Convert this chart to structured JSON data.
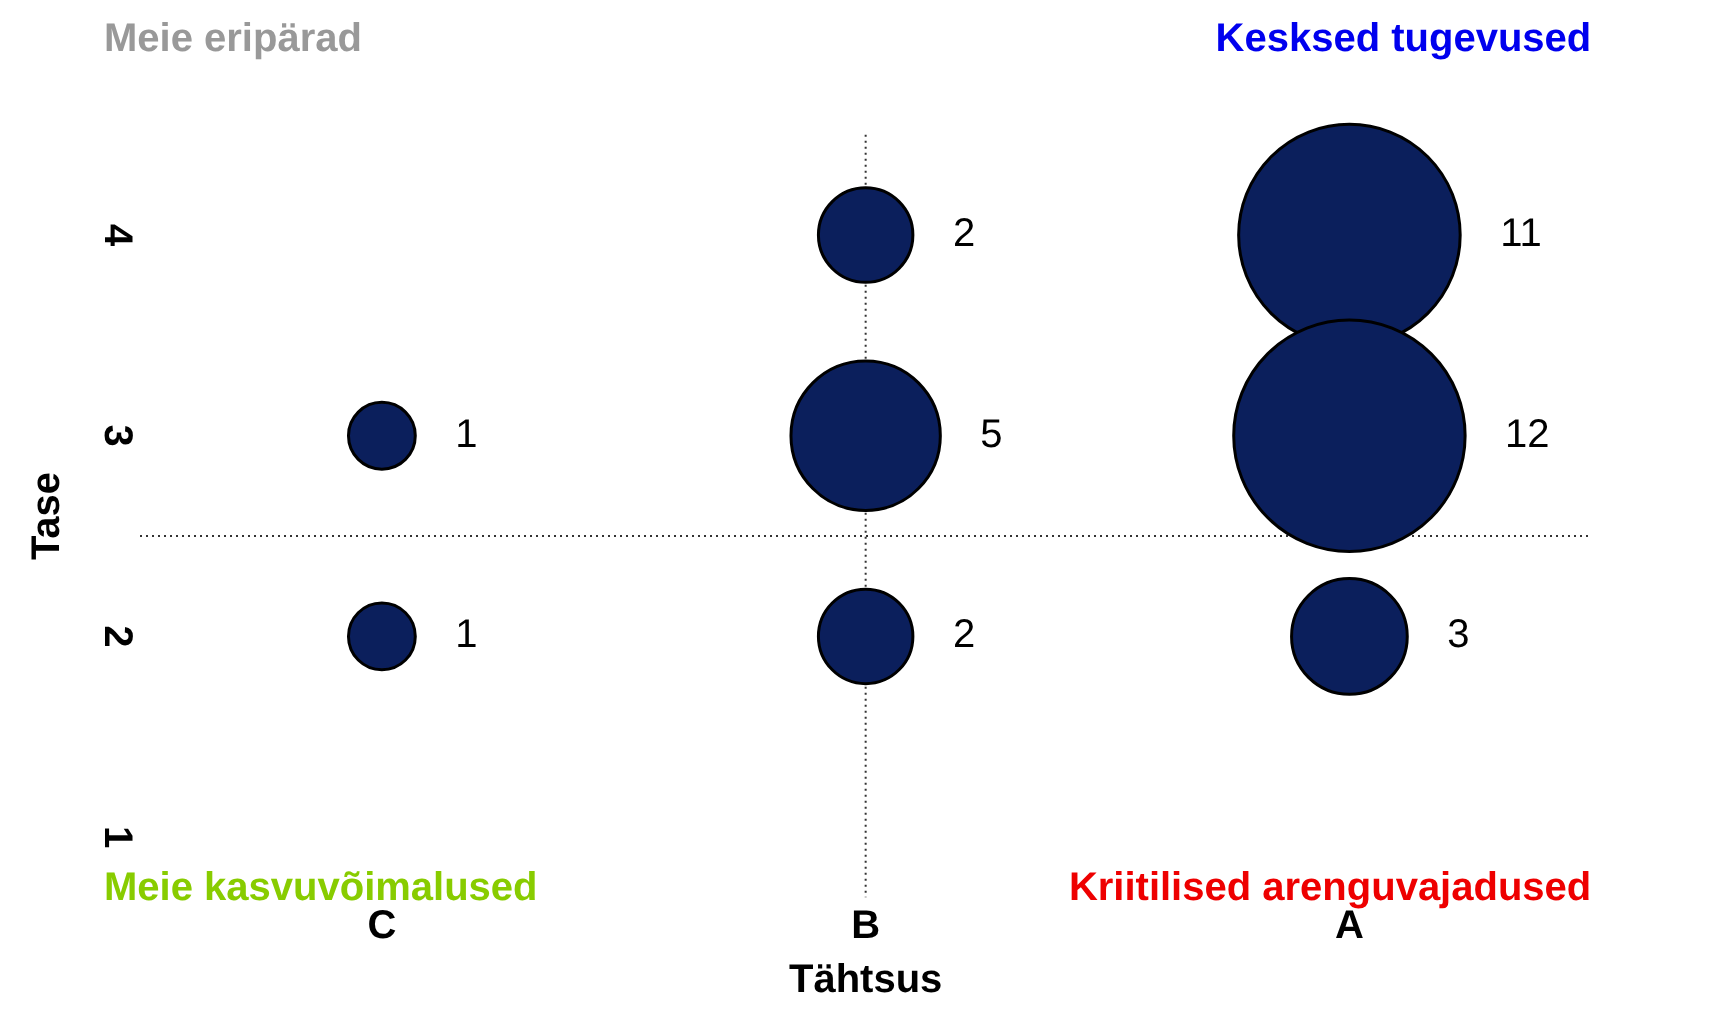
{
  "chart_data": {
    "type": "bubble",
    "xlabel": "Tähtsus",
    "ylabel": "Tase",
    "categories": [
      "C",
      "B",
      "A"
    ],
    "series": [
      {
        "color": "#0b1f5c",
        "x": [
          "C",
          "C",
          "B",
          "B",
          "B",
          "A",
          "A",
          "A"
        ],
        "values": [
          3,
          2,
          4,
          3,
          2,
          4,
          3,
          2
        ],
        "sizes": [
          1,
          1,
          2,
          5,
          2,
          11,
          12,
          3
        ],
        "value_labels": [
          "1",
          "1",
          "2",
          "5",
          "2",
          "11",
          "12",
          "3"
        ]
      }
    ],
    "ylim": [
      0.7,
      4.5
    ],
    "yticks": [
      1,
      2,
      3,
      4
    ],
    "ref_lines": [
      {
        "axis": "x",
        "value": "B",
        "line_style": "dotted"
      },
      {
        "axis": "y",
        "value": 2.5,
        "line_style": "dotted"
      }
    ],
    "annotations": [
      "Meie eripärad",
      "Kesksed tugevused",
      "Meie kasvuvõimalused",
      "Kriitilised arenguvajadused"
    ],
    "grid": false,
    "legend": false
  }
}
